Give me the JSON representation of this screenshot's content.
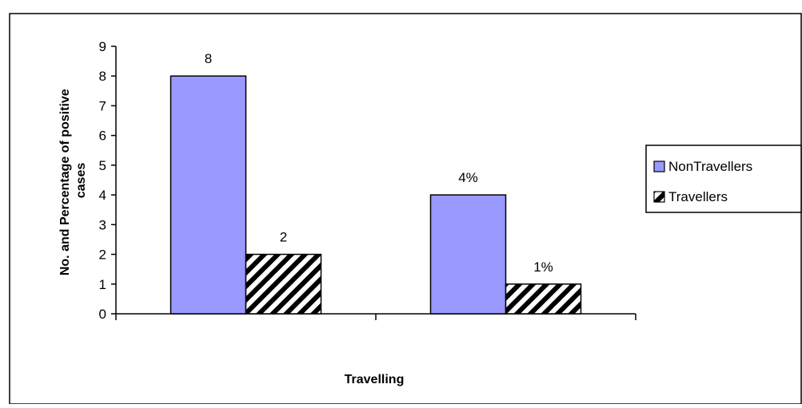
{
  "chart_data": {
    "type": "bar",
    "categories": [
      "",
      ""
    ],
    "series": [
      {
        "name": "NonTravellers",
        "values": [
          8,
          4
        ],
        "labels": [
          "8",
          "4%"
        ],
        "fill": "#9999ff",
        "pattern": "solid"
      },
      {
        "name": "Travellers",
        "values": [
          2,
          1
        ],
        "labels": [
          "2",
          "1%"
        ],
        "fill": "#ffffff",
        "pattern": "diagonal-stripes"
      }
    ],
    "xlabel": "Travelling",
    "ylabel": "No. and Percentage of positive cases",
    "ylim": [
      0,
      9
    ],
    "yticks": [
      "0",
      "1",
      "2",
      "3",
      "4",
      "5",
      "6",
      "7",
      "8",
      "9"
    ],
    "grid": false,
    "legend_position": "right",
    "colors": {
      "nontravellers": "#9999ff",
      "stripe": "#000000",
      "border": "#000000",
      "background": "#ffffff"
    }
  }
}
